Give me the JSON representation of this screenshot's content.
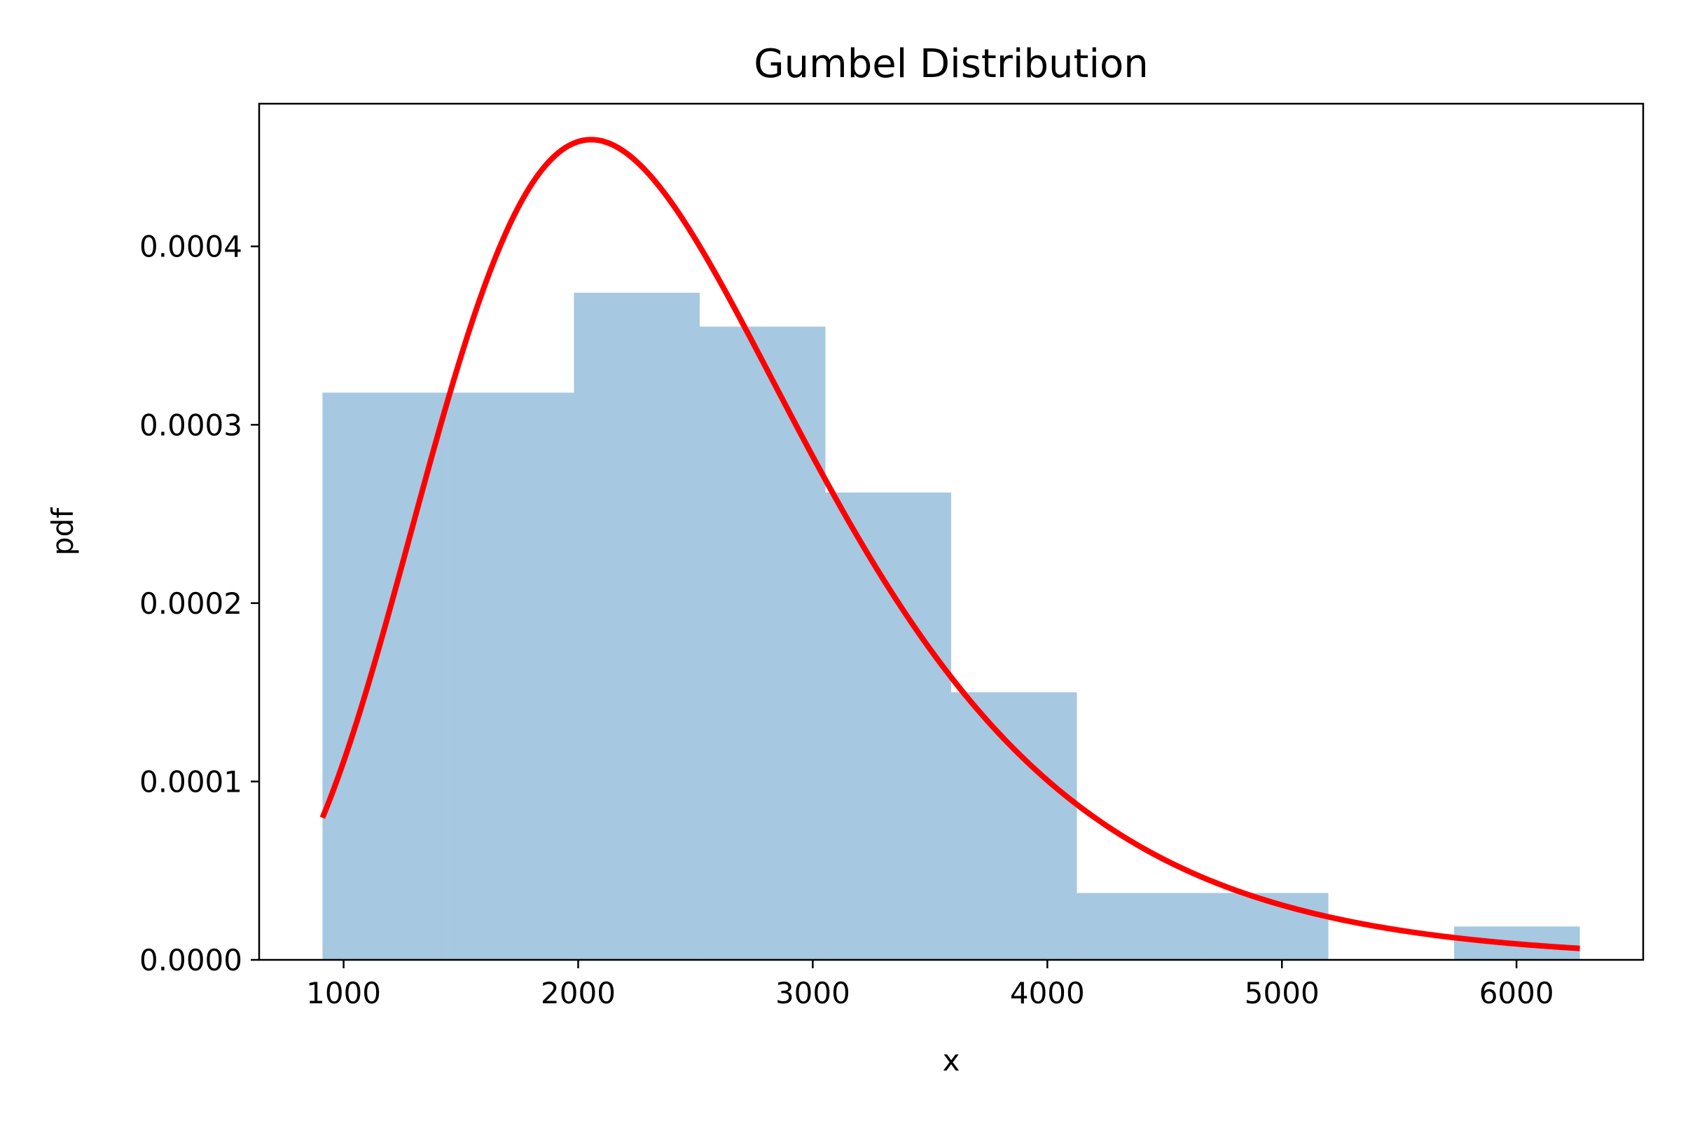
{
  "chart_data": {
    "type": "bar",
    "title": "Gumbel Distribution",
    "xlabel": "x",
    "ylabel": "pdf",
    "xlim": [
      640,
      6540
    ],
    "ylim": [
      0,
      0.00048
    ],
    "xticks": [
      1000,
      2000,
      3000,
      4000,
      5000,
      6000
    ],
    "xtick_labels": [
      "1000",
      "2000",
      "3000",
      "4000",
      "5000",
      "6000"
    ],
    "yticks": [
      0,
      0.0001,
      0.0002,
      0.0003,
      0.0004
    ],
    "ytick_labels": [
      "0.0000",
      "0.0001",
      "0.0002",
      "0.0003",
      "0.0004"
    ],
    "grid": false,
    "legend": "none",
    "histogram": {
      "color": "#a6c8e0",
      "bin_edges": [
        910,
        1446,
        1982,
        2518,
        3054,
        3590,
        4126,
        4662,
        5198,
        5734,
        6270
      ],
      "values": [
        0.000318,
        0.000318,
        0.000374,
        0.000355,
        0.000262,
        0.00015,
        3.75e-05,
        3.75e-05,
        0.0,
        1.87e-05
      ]
    },
    "curve": {
      "color": "#ff0000",
      "kind": "gumbel_pdf",
      "loc": 2055,
      "scale": 800,
      "x_range": [
        910,
        6270
      ]
    }
  }
}
